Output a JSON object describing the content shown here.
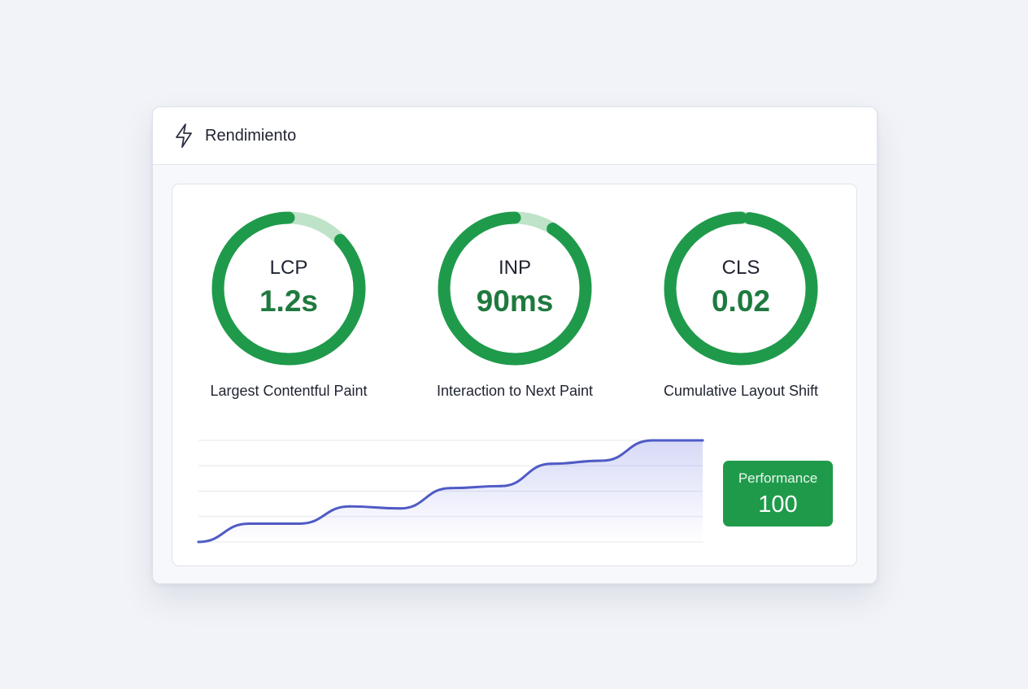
{
  "header": {
    "title": "Rendimiento",
    "icon": "lightning-bolt-icon"
  },
  "metrics": [
    {
      "abbr": "LCP",
      "value": "1.2s",
      "description": "Largest Contentful Paint",
      "good_fraction": 0.87
    },
    {
      "abbr": "INP",
      "value": "90ms",
      "description": "Interaction to Next Paint",
      "good_fraction": 0.91
    },
    {
      "abbr": "CLS",
      "value": "0.02",
      "description": "Cumulative Layout Shift",
      "good_fraction": 0.98
    }
  ],
  "score": {
    "label": "Performance",
    "value": "100"
  },
  "chart_data": {
    "type": "area",
    "title": "",
    "xlabel": "",
    "ylabel": "",
    "x": [
      0,
      1,
      2,
      3,
      4,
      5,
      6,
      7,
      8,
      9,
      10
    ],
    "series": [
      {
        "values": [
          0,
          18,
          18,
          35,
          33,
          53,
          55,
          77,
          80,
          100,
          100
        ]
      }
    ],
    "ylim": [
      0,
      100
    ],
    "grid": true,
    "legend": "none"
  },
  "colors": {
    "good": "#1f9a4b",
    "good_track": "#bfe3c9",
    "value_text": "#1e7a3e",
    "line": "#4f5bc4",
    "area": "#6670e0",
    "grid": "#e4e7ee",
    "card_bg": "#f7f8fb"
  }
}
